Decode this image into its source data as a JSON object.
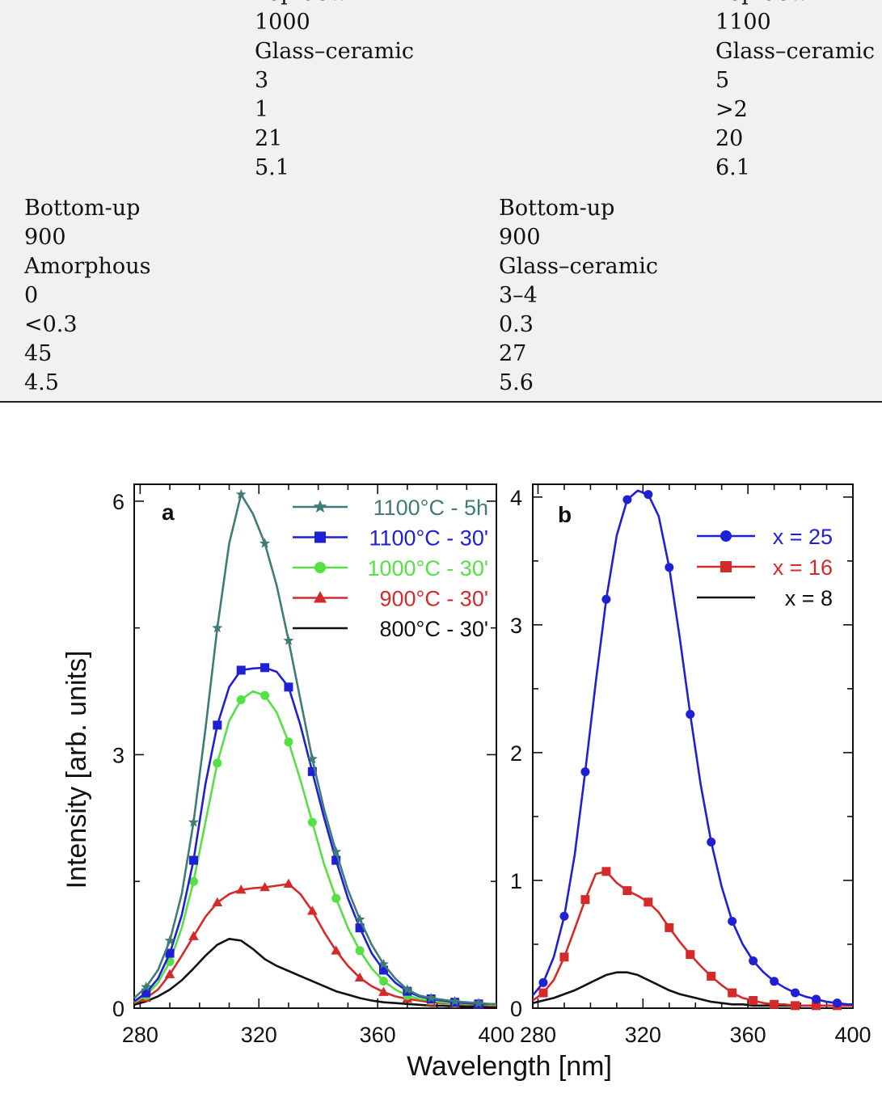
{
  "table": {
    "rows": [
      {
        "left": {
          "method": "Top-down",
          "temperature": "1000",
          "phase": "Glass–ceramic",
          "v1": "3",
          "v2": "1",
          "v3": "21",
          "v4": "5.1"
        },
        "right": {
          "method": "Top-down",
          "temperature": "1100",
          "phase": "Glass–ceramic",
          "v1": "5",
          "v2": ">2",
          "v3": "20",
          "v4": "6.1"
        }
      },
      {
        "left": {
          "method": "Bottom-up",
          "temperature": "900",
          "phase": "Amorphous",
          "v1": "0",
          "v2": "<0.3",
          "v3": "45",
          "v4": "4.5"
        },
        "right": {
          "method": "Bottom-up",
          "temperature": "900",
          "phase": "Glass–ceramic",
          "v1": "3–4",
          "v2": "0.3",
          "v3": "27",
          "v4": "5.6"
        }
      }
    ]
  },
  "figure": {
    "ylabel": "Intensity [arb. units]",
    "xlabel": "Wavelength [nm]"
  },
  "chart_data": [
    {
      "type": "line",
      "panel": "a",
      "xlim": [
        278,
        400
      ],
      "ylim": [
        0,
        6.2
      ],
      "xticks": [
        280,
        320,
        360,
        400
      ],
      "yticks": [
        0,
        3,
        6
      ],
      "grid": false,
      "legend_position": "top-right",
      "series": [
        {
          "name": "1100°C - 5h",
          "color": "#3f7c78",
          "marker": "star",
          "x": [
            278,
            282,
            286,
            290,
            294,
            298,
            302,
            306,
            310,
            314,
            318,
            322,
            326,
            330,
            334,
            338,
            342,
            346,
            350,
            354,
            358,
            362,
            366,
            370,
            374,
            378,
            382,
            386,
            390,
            394,
            398,
            400
          ],
          "y": [
            0.12,
            0.25,
            0.45,
            0.8,
            1.35,
            2.2,
            3.3,
            4.5,
            5.5,
            6.08,
            5.85,
            5.5,
            5.0,
            4.35,
            3.65,
            2.95,
            2.35,
            1.85,
            1.4,
            1.05,
            0.75,
            0.52,
            0.35,
            0.22,
            0.15,
            0.12,
            0.1,
            0.08,
            0.07,
            0.06,
            0.05,
            0.05
          ]
        },
        {
          "name": "1100°C - 30'",
          "color": "#1f1fd6",
          "marker": "square",
          "x": [
            278,
            282,
            286,
            290,
            294,
            298,
            302,
            306,
            310,
            314,
            318,
            322,
            326,
            330,
            334,
            338,
            342,
            346,
            350,
            354,
            358,
            362,
            366,
            370,
            374,
            378,
            382,
            386,
            390,
            394,
            398,
            400
          ],
          "y": [
            0.08,
            0.18,
            0.35,
            0.65,
            1.1,
            1.75,
            2.65,
            3.35,
            3.8,
            4.0,
            4.02,
            4.03,
            3.98,
            3.8,
            3.35,
            2.8,
            2.25,
            1.75,
            1.3,
            0.95,
            0.65,
            0.45,
            0.3,
            0.2,
            0.14,
            0.11,
            0.09,
            0.07,
            0.06,
            0.05,
            0.05,
            0.05
          ]
        },
        {
          "name": "1000°C - 30'",
          "color": "#55e044",
          "marker": "circle",
          "x": [
            278,
            282,
            286,
            290,
            294,
            298,
            302,
            306,
            310,
            314,
            318,
            322,
            326,
            330,
            334,
            338,
            342,
            346,
            350,
            354,
            358,
            362,
            366,
            370,
            374,
            378,
            382,
            386,
            390,
            394,
            398,
            400
          ],
          "y": [
            0.07,
            0.15,
            0.3,
            0.55,
            0.95,
            1.5,
            2.2,
            2.9,
            3.4,
            3.65,
            3.75,
            3.7,
            3.5,
            3.15,
            2.7,
            2.2,
            1.7,
            1.3,
            0.95,
            0.68,
            0.47,
            0.32,
            0.22,
            0.15,
            0.11,
            0.09,
            0.07,
            0.06,
            0.05,
            0.05,
            0.04,
            0.04
          ]
        },
        {
          "name": "900°C - 30'",
          "color": "#d42a2a",
          "marker": "triangle",
          "x": [
            278,
            282,
            286,
            290,
            294,
            298,
            302,
            306,
            310,
            314,
            318,
            322,
            326,
            330,
            334,
            338,
            342,
            346,
            350,
            354,
            358,
            362,
            366,
            370,
            374,
            378,
            382,
            386,
            390,
            394,
            398,
            400
          ],
          "y": [
            0.06,
            0.12,
            0.22,
            0.4,
            0.62,
            0.85,
            1.08,
            1.25,
            1.35,
            1.4,
            1.42,
            1.43,
            1.45,
            1.47,
            1.35,
            1.15,
            0.9,
            0.68,
            0.5,
            0.36,
            0.26,
            0.19,
            0.14,
            0.11,
            0.09,
            0.07,
            0.06,
            0.05,
            0.04,
            0.04,
            0.03,
            0.03
          ]
        },
        {
          "name": "800°C - 30'",
          "color": "#111111",
          "marker": "none",
          "x": [
            278,
            282,
            286,
            290,
            294,
            298,
            302,
            306,
            310,
            314,
            318,
            322,
            326,
            330,
            334,
            338,
            342,
            346,
            350,
            354,
            358,
            362,
            366,
            370,
            374,
            378,
            382,
            386,
            390,
            394,
            398,
            400
          ],
          "y": [
            0.04,
            0.08,
            0.14,
            0.22,
            0.33,
            0.47,
            0.62,
            0.75,
            0.82,
            0.8,
            0.7,
            0.58,
            0.5,
            0.44,
            0.38,
            0.32,
            0.26,
            0.2,
            0.16,
            0.12,
            0.09,
            0.07,
            0.06,
            0.05,
            0.04,
            0.03,
            0.03,
            0.02,
            0.02,
            0.02,
            0.02,
            0.02
          ]
        }
      ]
    },
    {
      "type": "line",
      "panel": "b",
      "xlim": [
        278,
        400
      ],
      "ylim": [
        0,
        4.1
      ],
      "xticks": [
        280,
        320,
        360,
        400
      ],
      "yticks": [
        0,
        1,
        2,
        3,
        4
      ],
      "grid": false,
      "legend_position": "top-right",
      "series": [
        {
          "name": "x = 25",
          "color": "#1f1fd6",
          "marker": "circle",
          "x": [
            278,
            282,
            286,
            290,
            294,
            298,
            302,
            306,
            310,
            314,
            318,
            322,
            326,
            330,
            334,
            338,
            342,
            346,
            350,
            354,
            358,
            362,
            366,
            370,
            374,
            378,
            382,
            386,
            390,
            394,
            398,
            400
          ],
          "y": [
            0.1,
            0.2,
            0.4,
            0.72,
            1.2,
            1.85,
            2.55,
            3.2,
            3.7,
            3.98,
            4.05,
            4.02,
            3.85,
            3.45,
            2.9,
            2.3,
            1.75,
            1.3,
            0.95,
            0.68,
            0.5,
            0.37,
            0.28,
            0.21,
            0.16,
            0.12,
            0.09,
            0.07,
            0.05,
            0.04,
            0.03,
            0.03
          ]
        },
        {
          "name": "x = 16",
          "color": "#d42a2a",
          "marker": "square",
          "x": [
            278,
            282,
            286,
            290,
            294,
            298,
            302,
            306,
            310,
            314,
            318,
            322,
            326,
            330,
            334,
            338,
            342,
            346,
            350,
            354,
            358,
            362,
            366,
            370,
            374,
            378,
            382,
            386,
            390,
            394,
            398,
            400
          ],
          "y": [
            0.06,
            0.12,
            0.22,
            0.4,
            0.62,
            0.85,
            1.05,
            1.07,
            0.98,
            0.92,
            0.88,
            0.83,
            0.75,
            0.63,
            0.52,
            0.42,
            0.33,
            0.25,
            0.18,
            0.12,
            0.08,
            0.06,
            0.04,
            0.03,
            0.03,
            0.02,
            0.02,
            0.02,
            0.02,
            0.02,
            0.02,
            0.02
          ]
        },
        {
          "name": "x = 8",
          "color": "#111111",
          "marker": "none",
          "x": [
            278,
            282,
            286,
            290,
            294,
            298,
            302,
            306,
            310,
            314,
            318,
            322,
            326,
            330,
            334,
            338,
            342,
            346,
            350,
            354,
            358,
            362,
            366,
            370,
            374,
            378,
            382,
            386,
            390,
            394,
            398,
            400
          ],
          "y": [
            0.04,
            0.06,
            0.08,
            0.11,
            0.14,
            0.18,
            0.22,
            0.26,
            0.28,
            0.28,
            0.26,
            0.22,
            0.18,
            0.14,
            0.11,
            0.09,
            0.07,
            0.05,
            0.04,
            0.03,
            0.03,
            0.02,
            0.02,
            0.02,
            0.02,
            0.02,
            0.02,
            0.02,
            0.02,
            0.02,
            0.02,
            0.02
          ]
        }
      ]
    }
  ]
}
